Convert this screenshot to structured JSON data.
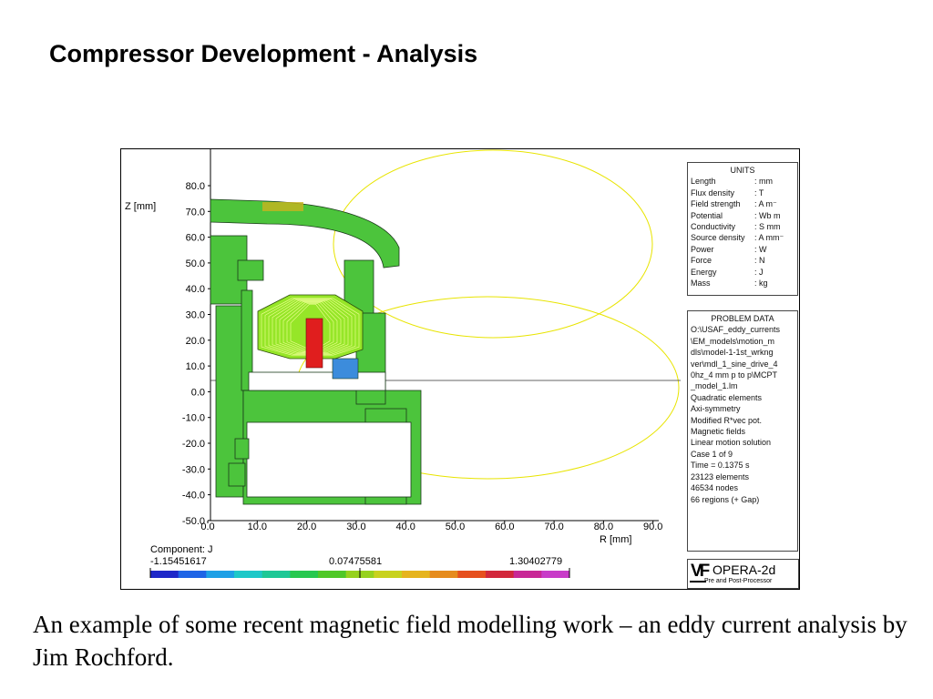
{
  "slide": {
    "title": "Compressor Development - Analysis",
    "caption": "An example of some recent magnetic field modelling work – an eddy current analysis by Jim Rochford."
  },
  "plot": {
    "z_axis_label": "Z [mm]",
    "r_axis_label": "R [mm]",
    "z_ticks": [
      "80.0",
      "70.0",
      "60.0",
      "50.0",
      "40.0",
      "30.0",
      "20.0",
      "10.0",
      "0.0",
      "-10.0",
      "-20.0",
      "-30.0",
      "-40.0",
      "-50.0"
    ],
    "r_ticks": [
      "0.0",
      "10.0",
      "20.0",
      "30.0",
      "40.0",
      "50.0",
      "60.0",
      "70.0",
      "80.0",
      "90.0"
    ]
  },
  "colorbar": {
    "component_label": "Component: J",
    "min_label": "-1.15451617",
    "mid_label": "0.07475581",
    "max_label": "1.30402779",
    "colors": [
      "#1e28c8",
      "#1e64e6",
      "#1ea0e6",
      "#1ec8c8",
      "#1ec896",
      "#28c850",
      "#50c828",
      "#96d21e",
      "#c8d21e",
      "#e6b41e",
      "#e68c1e",
      "#e6501e",
      "#d2283c",
      "#c82896",
      "#c83cc8"
    ]
  },
  "units": {
    "title": "UNITS",
    "rows": [
      {
        "label": "Length",
        "value": ": mm"
      },
      {
        "label": "Flux density",
        "value": ": T"
      },
      {
        "label": "Field strength",
        "value": ": A m⁻"
      },
      {
        "label": "Potential",
        "value": ": Wb m"
      },
      {
        "label": "Conductivity",
        "value": ": S mm"
      },
      {
        "label": "Source density",
        "value": ": A mm⁻"
      },
      {
        "label": "Power",
        "value": ": W"
      },
      {
        "label": "Force",
        "value": ": N"
      },
      {
        "label": "Energy",
        "value": ": J"
      },
      {
        "label": "Mass",
        "value": ": kg"
      }
    ]
  },
  "problem_data": {
    "title": "PROBLEM DATA",
    "lines": [
      "O:\\USAF_eddy_currents",
      "\\EM_models\\motion_m",
      "dls\\model-1-1st_wrkng",
      "ver\\mdl_1_sine_drive_4",
      "0hz_4 mm p to p\\MCPT",
      "_model_1.lm",
      "Quadratic elements",
      "Axi-symmetry",
      "Modified R*vec pot.",
      "Magnetic fields",
      "Linear motion solution",
      "Case 1 of 9",
      "Time = 0.1375 s",
      "23123 elements",
      "46534 nodes",
      "66 regions (+ Gap)"
    ]
  },
  "logo": {
    "mark": "VF",
    "brand": "OPERA-2d",
    "subtitle": "Pre and Post-Processor"
  }
}
